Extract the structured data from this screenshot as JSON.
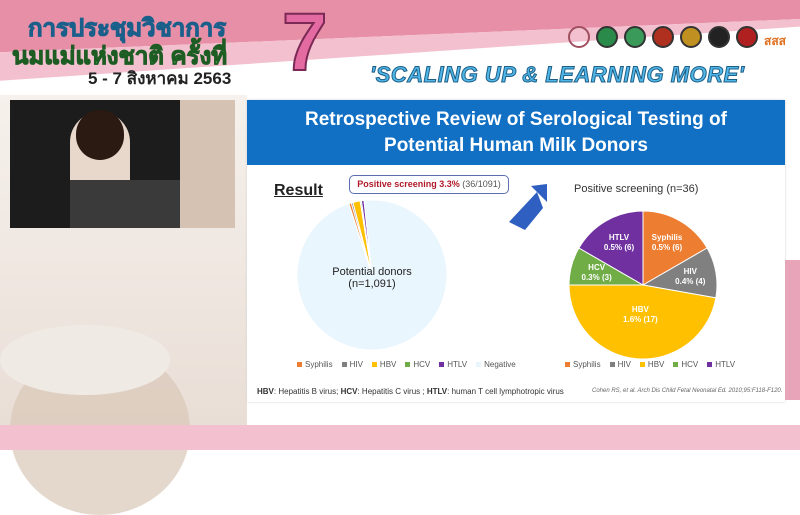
{
  "header": {
    "thai_title_line1": "การประชุมวิชาการ",
    "thai_title_line2": "นมแม่แห่งชาติ ครั้งที่",
    "dates": "5 - 7 สิงหาคม 2563",
    "number": "7",
    "slogan": "'SCALING UP & LEARNING MORE'",
    "logos": [
      "breastfeeding-logo",
      "moph-logo",
      "dept-health-logo",
      "university-logo",
      "royal-college-logo",
      "medical-council-logo",
      "association-logo",
      "thaihealth-logo"
    ],
    "logo_text": "สสส"
  },
  "slide": {
    "title_line1": "Retrospective Review of Serological Testing of",
    "title_line2": "Potential Human Milk Donors",
    "result_label": "Result",
    "callout_bold": "Positive screening 3.3%",
    "callout_rest": " (36/1091)",
    "left_pie_label_line1": "Potential donors",
    "left_pie_label_line2": "(n=1,091)",
    "right_pie_title": "Positive screening (n=36)",
    "footnote_parts": [
      "HBV",
      ": Hepatitis B virus; ",
      "HCV",
      ": Hepatitis C virus ; ",
      "HTLV",
      ": human T cell lymphotropic virus"
    ],
    "citation": "Cohen RS, et al. Arch Dis Child Fetal Neonatal Ed. 2010;95:F118-F120."
  },
  "chart_data": [
    {
      "type": "pie",
      "categories": [
        "Syphilis",
        "HIV",
        "HBV",
        "HCV",
        "HTLV",
        "Negative"
      ],
      "values": [
        6,
        4,
        17,
        3,
        6,
        1055
      ],
      "colors": [
        "#ed7d31",
        "#808080",
        "#ffc000",
        "#70ad47",
        "#7030a0",
        "#eaf6fd"
      ],
      "legend": "bottom",
      "center_label": "Potential donors (n=1,091)"
    },
    {
      "type": "pie",
      "title": "Positive screening (n=36)",
      "categories": [
        "Syphilis",
        "HIV",
        "HBV",
        "HCV",
        "HTLV"
      ],
      "values": [
        6,
        4,
        17,
        3,
        6
      ],
      "labels": [
        [
          "Syphilis",
          "0.5% (6)"
        ],
        [
          "HIV",
          "0.4% (4)"
        ],
        [
          "HBV",
          "1.6% (17)"
        ],
        [
          "HCV",
          "0.3% (3)"
        ],
        [
          "HTLV",
          "0.5% (6)"
        ]
      ],
      "colors": [
        "#ed7d31",
        "#808080",
        "#ffc000",
        "#70ad47",
        "#7030a0"
      ],
      "legend": "bottom"
    }
  ]
}
